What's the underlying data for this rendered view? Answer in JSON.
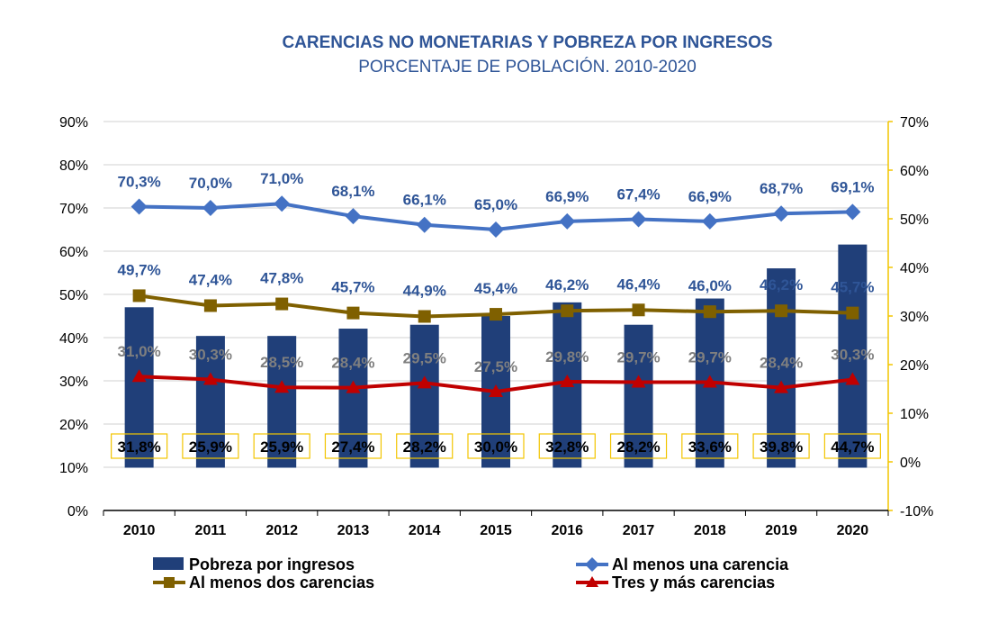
{
  "chart_data": {
    "type": "bar",
    "title": "CARENCIAS NO MONETARIAS Y POBREZA POR INGRESOS",
    "subtitle": "PORCENTAJE DE POBLACIÓN. 2010-2020",
    "categories": [
      "2010",
      "2011",
      "2012",
      "2013",
      "2014",
      "2015",
      "2016",
      "2017",
      "2018",
      "2019",
      "2020"
    ],
    "y_left": {
      "min": 0,
      "max": 90,
      "step": 10,
      "ticks": [
        "0%",
        "10%",
        "20%",
        "30%",
        "40%",
        "50%",
        "60%",
        "70%",
        "80%",
        "90%"
      ]
    },
    "y_right": {
      "min": -10,
      "max": 70,
      "step": 10,
      "ticks": [
        "-10%",
        "0%",
        "10%",
        "20%",
        "30%",
        "40%",
        "50%",
        "60%",
        "70%"
      ]
    },
    "grid": true,
    "legend_position": "bottom",
    "series": [
      {
        "name": "Pobreza por ingresos",
        "kind": "bar",
        "axis": "right",
        "color": "#203f79",
        "values": [
          31.8,
          25.9,
          25.9,
          27.4,
          28.2,
          30.0,
          32.8,
          28.2,
          33.6,
          39.8,
          44.7
        ],
        "labels": [
          "31,8%",
          "25,9%",
          "25,9%",
          "27,4%",
          "28,2%",
          "30,0%",
          "32,8%",
          "28,2%",
          "33,6%",
          "39,8%",
          "44,7%"
        ]
      },
      {
        "name": "Al menos una carencia",
        "kind": "line",
        "axis": "left",
        "marker": "diamond",
        "color": "#4472c4",
        "values": [
          70.3,
          70.0,
          71.0,
          68.1,
          66.1,
          65.0,
          66.9,
          67.4,
          66.9,
          68.7,
          69.1
        ],
        "labels": [
          "70,3%",
          "70,0%",
          "71,0%",
          "68,1%",
          "66,1%",
          "65,0%",
          "66,9%",
          "67,4%",
          "66,9%",
          "68,7%",
          "69,1%"
        ]
      },
      {
        "name": "Al menos dos carencias",
        "kind": "line",
        "axis": "left",
        "marker": "square",
        "color": "#7f6000",
        "values": [
          49.7,
          47.4,
          47.8,
          45.7,
          44.9,
          45.4,
          46.2,
          46.4,
          46.0,
          46.2,
          45.7
        ],
        "labels": [
          "49,7%",
          "47,4%",
          "47,8%",
          "45,7%",
          "44,9%",
          "45,4%",
          "46,2%",
          "46,4%",
          "46,0%",
          "46,2%",
          "45,7%"
        ]
      },
      {
        "name": "Tres y más carencias",
        "kind": "line",
        "axis": "left",
        "marker": "triangle",
        "color": "#c00000",
        "values": [
          31.0,
          30.3,
          28.5,
          28.4,
          29.5,
          27.5,
          29.8,
          29.7,
          29.7,
          28.4,
          30.3
        ],
        "labels": [
          "31,0%",
          "30,3%",
          "28,5%",
          "28,4%",
          "29,5%",
          "27,5%",
          "29,8%",
          "29,7%",
          "29,7%",
          "28,4%",
          "30,3%"
        ]
      }
    ]
  }
}
